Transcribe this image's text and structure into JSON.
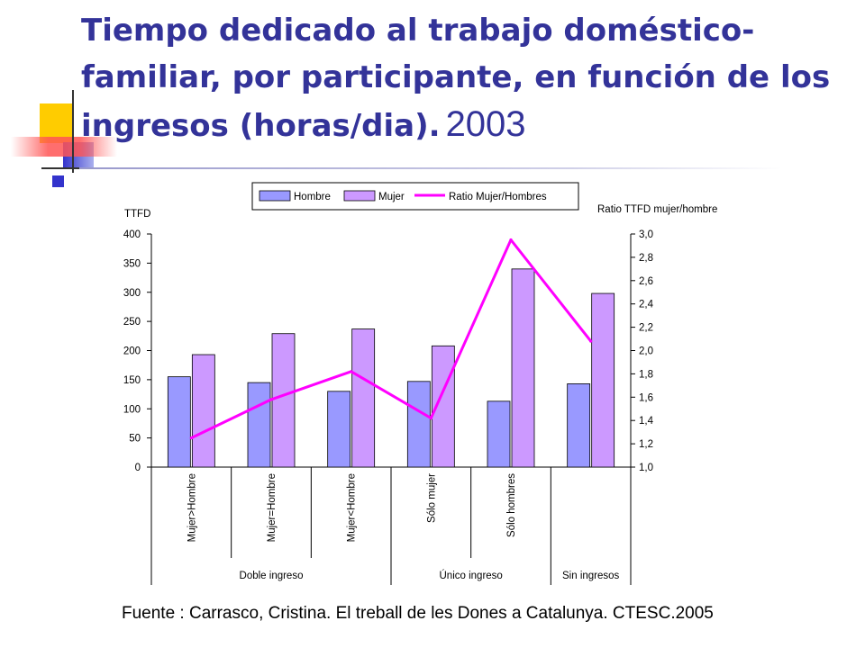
{
  "title": {
    "main": "Tiempo dedicado al trabajo doméstico-familiar, por participante, en función de los ingresos (horas/dia).",
    "year": "2003"
  },
  "source": "Fuente : Carrasco, Cristina.  El treball de les Dones a Catalunya. CTESC.2005",
  "colors": {
    "title": "#333399",
    "hombre": "#9999ff",
    "mujer": "#cc99ff",
    "ratio": "#ff00ff",
    "deco_yellow": "#ffcc00",
    "deco_blue": "#3333cc",
    "deco_red": "#ff3333"
  },
  "chart_data": {
    "type": "bar",
    "left_axis_title": "TTFD",
    "right_axis_title": "Ratio TTFD mujer/hombre",
    "ylim": [
      0,
      400
    ],
    "yticks": [
      0,
      50,
      100,
      150,
      200,
      250,
      300,
      350,
      400
    ],
    "ylim_right": [
      1.0,
      3.0
    ],
    "yticks_right": [
      "1,0",
      "1,2",
      "1,4",
      "1,6",
      "1,8",
      "2,0",
      "2,2",
      "2,4",
      "2,6",
      "2,8",
      "3,0"
    ],
    "categories": [
      "Mujer>Hombre",
      "Mujer=Hombre",
      "Mujer<Hombre",
      "Sólo mujer",
      "Sólo hombres",
      ""
    ],
    "groups": [
      {
        "label": "Doble ingreso",
        "span": [
          0,
          2
        ]
      },
      {
        "label": "Único ingreso",
        "span": [
          3,
          4
        ]
      },
      {
        "label": "Sin ingresos",
        "span": [
          5,
          5
        ]
      }
    ],
    "legend": [
      "Hombre",
      "Mujer",
      "Ratio Mujer/Hombres"
    ],
    "series": [
      {
        "name": "Hombre",
        "kind": "bar",
        "axis": "left",
        "values": [
          155,
          145,
          130,
          147,
          113,
          143
        ]
      },
      {
        "name": "Mujer",
        "kind": "bar",
        "axis": "left",
        "values": [
          193,
          229,
          237,
          208,
          340,
          298
        ]
      },
      {
        "name": "Ratio Mujer/Hombres",
        "kind": "line",
        "axis": "right",
        "values": [
          1.25,
          1.58,
          1.82,
          1.42,
          2.95,
          2.08
        ]
      }
    ]
  }
}
